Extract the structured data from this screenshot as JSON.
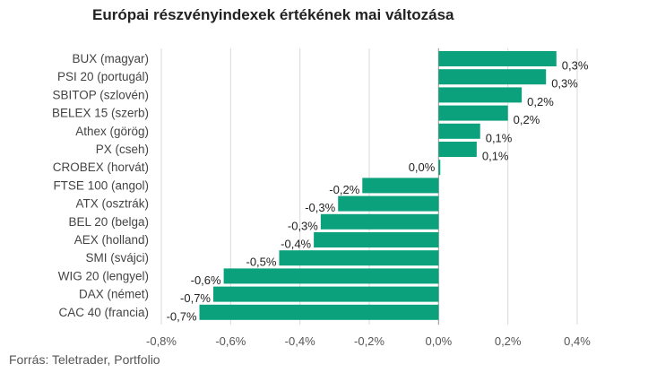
{
  "chart_data": {
    "type": "bar",
    "orientation": "horizontal",
    "title": "Európai részvényindexek értékének mai változása",
    "source": "Forrás: Teletrader, Portfolio",
    "categories": [
      "BUX (magyar)",
      "PSI 20 (portugál)",
      "SBITOP (szlovén)",
      "BELEX 15 (szerb)",
      "Athex (görög)",
      "PX (cseh)",
      "CROBEX (horvát)",
      "FTSE 100 (angol)",
      "ATX (osztrák)",
      "BEL 20 (belga)",
      "AEX (holland)",
      "SMI (svájci)",
      "WIG 20 (lengyel)",
      "DAX (német)",
      "CAC 40 (francia)"
    ],
    "values": [
      0.34,
      0.31,
      0.24,
      0.2,
      0.12,
      0.11,
      0.005,
      -0.22,
      -0.29,
      -0.34,
      -0.36,
      -0.46,
      -0.62,
      -0.65,
      -0.69
    ],
    "value_labels": [
      "0,3%",
      "0,3%",
      "0,2%",
      "0,2%",
      "0,1%",
      "0,1%",
      "0,0%",
      "-0,2%",
      "-0,3%",
      "-0,3%",
      "-0,4%",
      "-0,5%",
      "-0,6%",
      "-0,7%",
      "-0,7%"
    ],
    "xlim": [
      -0.8,
      0.4
    ],
    "x_ticks": [
      -0.8,
      -0.6,
      -0.4,
      -0.2,
      0.0,
      0.2,
      0.4
    ],
    "x_tick_labels": [
      "-0,8%",
      "-0,6%",
      "-0,4%",
      "-0,2%",
      "0,0%",
      "0,2%",
      "0,4%"
    ],
    "grid": true,
    "legend": "none",
    "bar_color": "#0aa17c"
  }
}
